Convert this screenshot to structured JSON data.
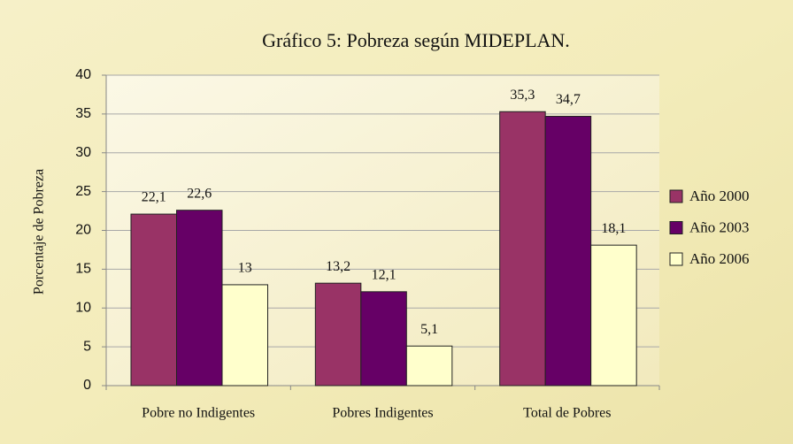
{
  "chart_data": {
    "type": "bar",
    "title": "Gráfico 5: Pobreza según MIDEPLAN.",
    "y_label": "Porcentaje de Pobreza",
    "categories": [
      "Pobre no Indigentes",
      "Pobres Indigentes",
      "Total de Pobres"
    ],
    "series": [
      {
        "name": "Año 2000",
        "color": "#993366",
        "values": [
          22.1,
          13.2,
          35.3
        ],
        "value_labels": [
          "22,1",
          "13,2",
          "35,3"
        ]
      },
      {
        "name": "Año 2003",
        "color": "#660066",
        "values": [
          22.6,
          12.1,
          34.7
        ],
        "value_labels": [
          "22,6",
          "12,1",
          "34,7"
        ]
      },
      {
        "name": "Año 2006",
        "color": "#ffffcc",
        "values": [
          13,
          5.1,
          18.1
        ],
        "value_labels": [
          "13",
          "5,1",
          "18,1"
        ]
      }
    ],
    "ylim": [
      0,
      40
    ],
    "yticks": [
      0,
      5,
      10,
      15,
      20,
      25,
      30,
      35,
      40
    ],
    "grid": true,
    "legend": "right"
  }
}
